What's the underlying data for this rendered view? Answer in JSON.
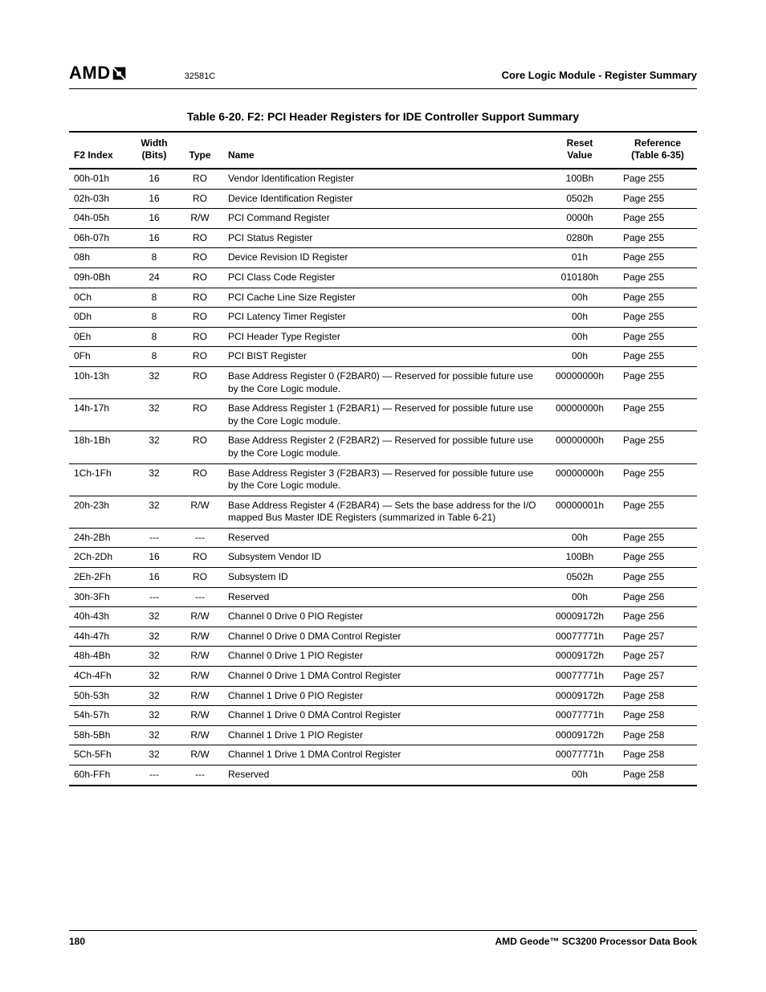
{
  "header": {
    "logo_text": "AMD",
    "logo_glyph": "↵",
    "doc_number": "32581C",
    "section_title": "Core Logic Module - Register Summary"
  },
  "table": {
    "caption": "Table 6-20.  F2: PCI Header Registers for IDE Controller Support Summary",
    "columns": {
      "index": "F2 Index",
      "width_l1": "Width",
      "width_l2": "(Bits)",
      "type": "Type",
      "name": "Name",
      "reset_l1": "Reset",
      "reset_l2": "Value",
      "ref_l1": "Reference",
      "ref_l2": "(Table 6-35)"
    },
    "rows": [
      {
        "index": "00h-01h",
        "width": "16",
        "type": "RO",
        "name": "Vendor Identification Register",
        "reset": "100Bh",
        "ref": "Page 255"
      },
      {
        "index": "02h-03h",
        "width": "16",
        "type": "RO",
        "name": "Device Identification Register",
        "reset": "0502h",
        "ref": "Page 255"
      },
      {
        "index": "04h-05h",
        "width": "16",
        "type": "R/W",
        "name": "PCI Command Register",
        "reset": "0000h",
        "ref": "Page 255"
      },
      {
        "index": "06h-07h",
        "width": "16",
        "type": "RO",
        "name": "PCI Status Register",
        "reset": "0280h",
        "ref": "Page 255"
      },
      {
        "index": "08h",
        "width": "8",
        "type": "RO",
        "name": "Device Revision ID Register",
        "reset": "01h",
        "ref": "Page 255"
      },
      {
        "index": "09h-0Bh",
        "width": "24",
        "type": "RO",
        "name": "PCI Class Code Register",
        "reset": "010180h",
        "ref": "Page 255"
      },
      {
        "index": "0Ch",
        "width": "8",
        "type": "RO",
        "name": "PCI Cache Line Size Register",
        "reset": "00h",
        "ref": "Page 255"
      },
      {
        "index": "0Dh",
        "width": "8",
        "type": "RO",
        "name": "PCI Latency Timer Register",
        "reset": "00h",
        "ref": "Page 255"
      },
      {
        "index": "0Eh",
        "width": "8",
        "type": "RO",
        "name": "PCI Header Type Register",
        "reset": "00h",
        "ref": "Page 255"
      },
      {
        "index": "0Fh",
        "width": "8",
        "type": "RO",
        "name": "PCI BIST Register",
        "reset": "00h",
        "ref": "Page 255"
      },
      {
        "index": "10h-13h",
        "width": "32",
        "type": "RO",
        "name": "Base Address Register 0 (F2BAR0) — Reserved for possible future use by the Core Logic module.",
        "reset": "00000000h",
        "ref": "Page 255"
      },
      {
        "index": "14h-17h",
        "width": "32",
        "type": "RO",
        "name": "Base Address Register 1 (F2BAR1) — Reserved for possible future use by the Core Logic module.",
        "reset": "00000000h",
        "ref": "Page 255"
      },
      {
        "index": "18h-1Bh",
        "width": "32",
        "type": "RO",
        "name": "Base Address Register 2 (F2BAR2) — Reserved for possible future use by the Core Logic module.",
        "reset": "00000000h",
        "ref": "Page 255"
      },
      {
        "index": "1Ch-1Fh",
        "width": "32",
        "type": "RO",
        "name": "Base Address Register 3 (F2BAR3) — Reserved for possible future use by the Core Logic module.",
        "reset": "00000000h",
        "ref": "Page 255"
      },
      {
        "index": "20h-23h",
        "width": "32",
        "type": "R/W",
        "name": "Base Address Register 4 (F2BAR4) — Sets the base address for the I/O mapped Bus Master IDE Registers (summarized in Table 6-21)",
        "reset": "00000001h",
        "ref": "Page 255"
      },
      {
        "index": "24h-2Bh",
        "width": "---",
        "type": "---",
        "name": "Reserved",
        "reset": "00h",
        "ref": "Page 255"
      },
      {
        "index": "2Ch-2Dh",
        "width": "16",
        "type": "RO",
        "name": "Subsystem Vendor ID",
        "reset": "100Bh",
        "ref": "Page 255"
      },
      {
        "index": "2Eh-2Fh",
        "width": "16",
        "type": "RO",
        "name": "Subsystem ID",
        "reset": "0502h",
        "ref": "Page 255"
      },
      {
        "index": "30h-3Fh",
        "width": "---",
        "type": "---",
        "name": "Reserved",
        "reset": "00h",
        "ref": "Page 256"
      },
      {
        "index": "40h-43h",
        "width": "32",
        "type": "R/W",
        "name": "Channel 0 Drive 0 PIO Register",
        "reset": "00009172h",
        "ref": "Page 256"
      },
      {
        "index": "44h-47h",
        "width": "32",
        "type": "R/W",
        "name": "Channel 0 Drive 0 DMA Control Register",
        "reset": "00077771h",
        "ref": "Page 257"
      },
      {
        "index": "48h-4Bh",
        "width": "32",
        "type": "R/W",
        "name": "Channel 0 Drive 1 PIO Register",
        "reset": "00009172h",
        "ref": "Page 257"
      },
      {
        "index": "4Ch-4Fh",
        "width": "32",
        "type": "R/W",
        "name": "Channel 0 Drive 1 DMA Control Register",
        "reset": "00077771h",
        "ref": "Page 257"
      },
      {
        "index": "50h-53h",
        "width": "32",
        "type": "R/W",
        "name": "Channel 1 Drive 0 PIO Register",
        "reset": "00009172h",
        "ref": "Page 258"
      },
      {
        "index": "54h-57h",
        "width": "32",
        "type": "R/W",
        "name": "Channel 1 Drive 0 DMA Control Register",
        "reset": "00077771h",
        "ref": "Page 258"
      },
      {
        "index": "58h-5Bh",
        "width": "32",
        "type": "R/W",
        "name": "Channel 1 Drive 1 PIO Register",
        "reset": "00009172h",
        "ref": "Page 258"
      },
      {
        "index": "5Ch-5Fh",
        "width": "32",
        "type": "R/W",
        "name": "Channel 1 Drive 1 DMA Control Register",
        "reset": "00077771h",
        "ref": "Page 258"
      },
      {
        "index": "60h-FFh",
        "width": "---",
        "type": "---",
        "name": "Reserved",
        "reset": "00h",
        "ref": "Page 258"
      }
    ]
  },
  "footer": {
    "page_number": "180",
    "book_title": "AMD Geode™ SC3200 Processor Data Book"
  }
}
